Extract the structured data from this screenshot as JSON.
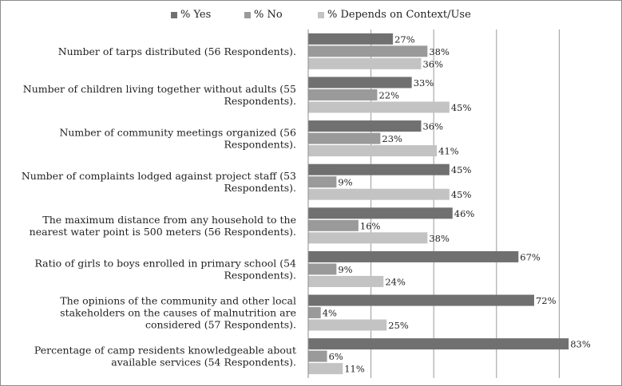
{
  "chart_data": {
    "type": "bar",
    "orientation": "horizontal",
    "categories": [
      [
        "Number of tarps distributed (56 Respondents)."
      ],
      [
        "Number of children living together without adults (55",
        "Respondents)."
      ],
      [
        "Number of community meetings organized (56",
        "Respondents)."
      ],
      [
        "Number of complaints lodged against project staff (53",
        "Respondents)."
      ],
      [
        "The maximum distance from any household to the",
        "nearest water point is 500 meters (56 Respondents)."
      ],
      [
        "Ratio of girls to boys enrolled in primary school (54",
        "Respondents)."
      ],
      [
        "The opinions of the community and other local",
        "stakeholders on the causes of malnutrition are",
        "considered (57 Respondents)."
      ],
      [
        "Percentage of camp residents knowledgeable about",
        "available services (54 Respondents)."
      ]
    ],
    "series": [
      {
        "name": "% Yes",
        "color": "#707070",
        "values": [
          27,
          33,
          36,
          45,
          46,
          67,
          72,
          83
        ]
      },
      {
        "name": "% No",
        "color": "#9a9a9a",
        "values": [
          38,
          22,
          23,
          9,
          16,
          9,
          4,
          6
        ]
      },
      {
        "name": "% Depends on Context/Use",
        "color": "#c3c3c3",
        "values": [
          36,
          45,
          41,
          45,
          38,
          24,
          25,
          11
        ]
      }
    ],
    "data_labels": [
      [
        "27%",
        "33%",
        "36%",
        "45%",
        "46%",
        "67%",
        "72%",
        "83%"
      ],
      [
        "38%",
        "22%",
        "23%",
        "9%",
        "16%",
        "9%",
        "4%",
        "6%"
      ],
      [
        "36%",
        "45%",
        "41%",
        "45%",
        "38%",
        "24%",
        "25%",
        "11%"
      ]
    ],
    "xlim": [
      0,
      100
    ],
    "grid": true,
    "legend": "top"
  }
}
